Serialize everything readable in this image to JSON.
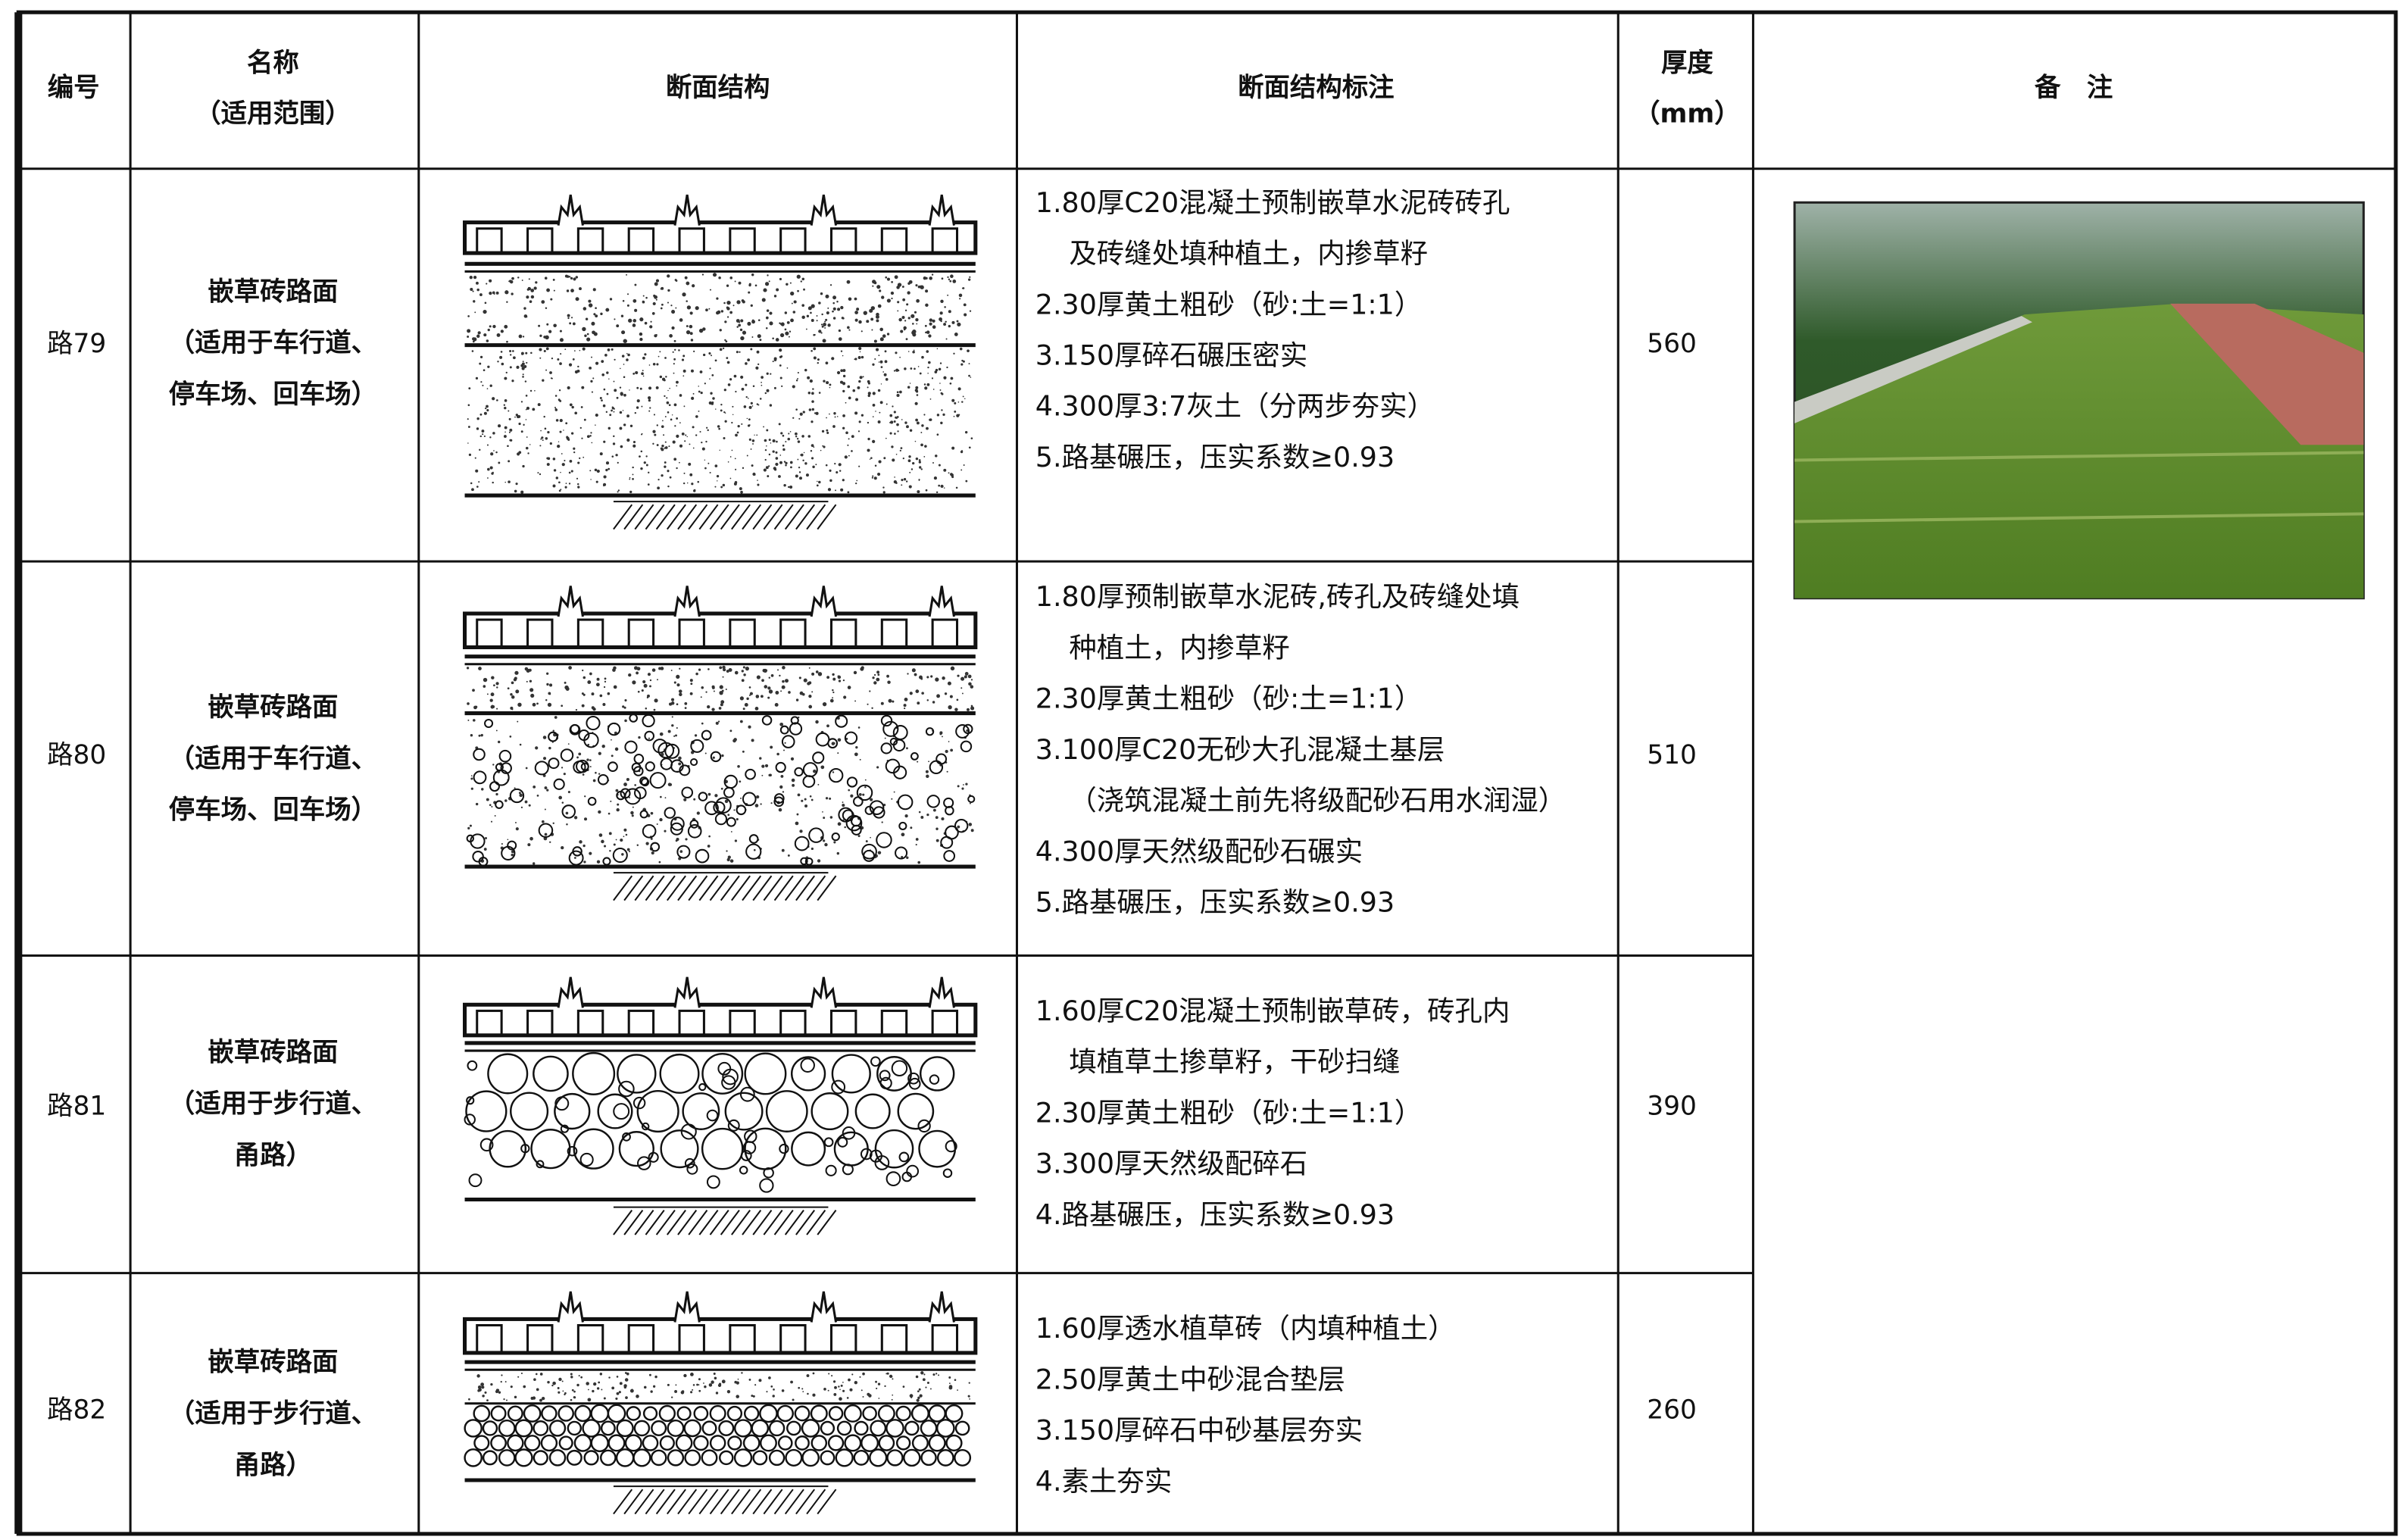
{
  "header": {
    "columns": [
      {
        "lines": [
          "编号"
        ]
      },
      {
        "lines": [
          "名称",
          "（适用范围）"
        ]
      },
      {
        "lines": [
          "断面结构"
        ]
      },
      {
        "lines": [
          "断面结构标注"
        ]
      },
      {
        "lines": [
          "厚度",
          "（mm）"
        ]
      },
      {
        "lines": [
          "备　注"
        ]
      }
    ]
  },
  "rows": [
    {
      "id": "路79",
      "name": [
        "嵌草砖路面",
        "（适用于车行道、",
        "停车场、回车场）"
      ],
      "notes": [
        [
          "1.80厚C20混凝土预制嵌草水泥砖砖孔",
          "及砖缝处填种植土，内掺草籽"
        ],
        [
          "2.30厚黄土粗砂（砂:土=1:1）"
        ],
        [
          "3.150厚碎石碾压密实"
        ],
        [
          "4.300厚3:7灰土（分两步夯实）"
        ],
        [
          "5.路基碾压，压实系数≥0.93"
        ]
      ],
      "thickness": 560
    },
    {
      "id": "路80",
      "name": [
        "嵌草砖路面",
        "（适用于车行道、",
        "停车场、回车场）"
      ],
      "notes": [
        [
          "1.80厚预制嵌草水泥砖,砖孔及砖缝处填",
          "种植土，内掺草籽"
        ],
        [
          "2.30厚黄土粗砂（砂:土=1:1）"
        ],
        [
          "3.100厚C20无砂大孔混凝土基层",
          "（浇筑混凝土前先将级配砂石用水润湿）"
        ],
        [
          "4.300厚天然级配砂石碾实"
        ],
        [
          "5.路基碾压，压实系数≥0.93"
        ]
      ],
      "thickness": 510
    },
    {
      "id": "路81",
      "name": [
        "嵌草砖路面",
        "（适用于步行道、",
        "甬路）"
      ],
      "notes": [
        [
          "1.60厚C20混凝土预制嵌草砖，砖孔内",
          "填植草土掺草籽，干砂扫缝"
        ],
        [
          "2.30厚黄土粗砂（砂:土=1:1）"
        ],
        [
          "3.300厚天然级配碎石"
        ],
        [
          "4.路基碾压，压实系数≥0.93"
        ]
      ],
      "thickness": 390
    },
    {
      "id": "路82",
      "name": [
        "嵌草砖路面",
        "（适用于步行道、",
        "甬路）"
      ],
      "notes": [
        [
          "1.60厚透水植草砖（内填种植土）"
        ],
        [
          "2.50厚黄土中砂混合垫层"
        ],
        [
          "3.150厚碎石中砂基层夯实"
        ],
        [
          "4.素土夯实"
        ]
      ],
      "thickness": 260
    }
  ]
}
